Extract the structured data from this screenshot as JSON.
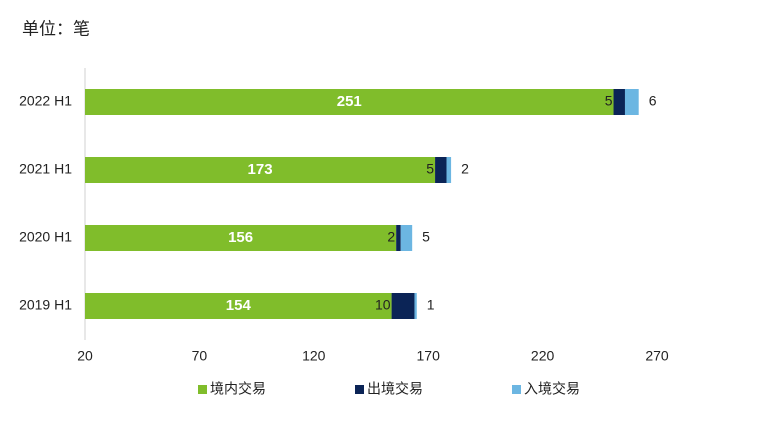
{
  "chart_data": {
    "type": "stacked-bar-horizontal",
    "title": "单位：笔",
    "categories": [
      "2022 H1",
      "2021 H1",
      "2020 H1",
      "2019 H1"
    ],
    "series": [
      {
        "name": "境内交易",
        "color": "#80bd2b",
        "values": [
          251,
          173,
          156,
          154
        ]
      },
      {
        "name": "出境交易",
        "color": "#0b2456",
        "values": [
          5,
          5,
          2,
          10
        ]
      },
      {
        "name": "入境交易",
        "color": "#6cb6e2",
        "values": [
          6,
          2,
          5,
          1
        ]
      }
    ],
    "xlim": [
      20,
      270
    ],
    "xticks": [
      20,
      70,
      120,
      170,
      220,
      270
    ],
    "legend": "bottom"
  }
}
